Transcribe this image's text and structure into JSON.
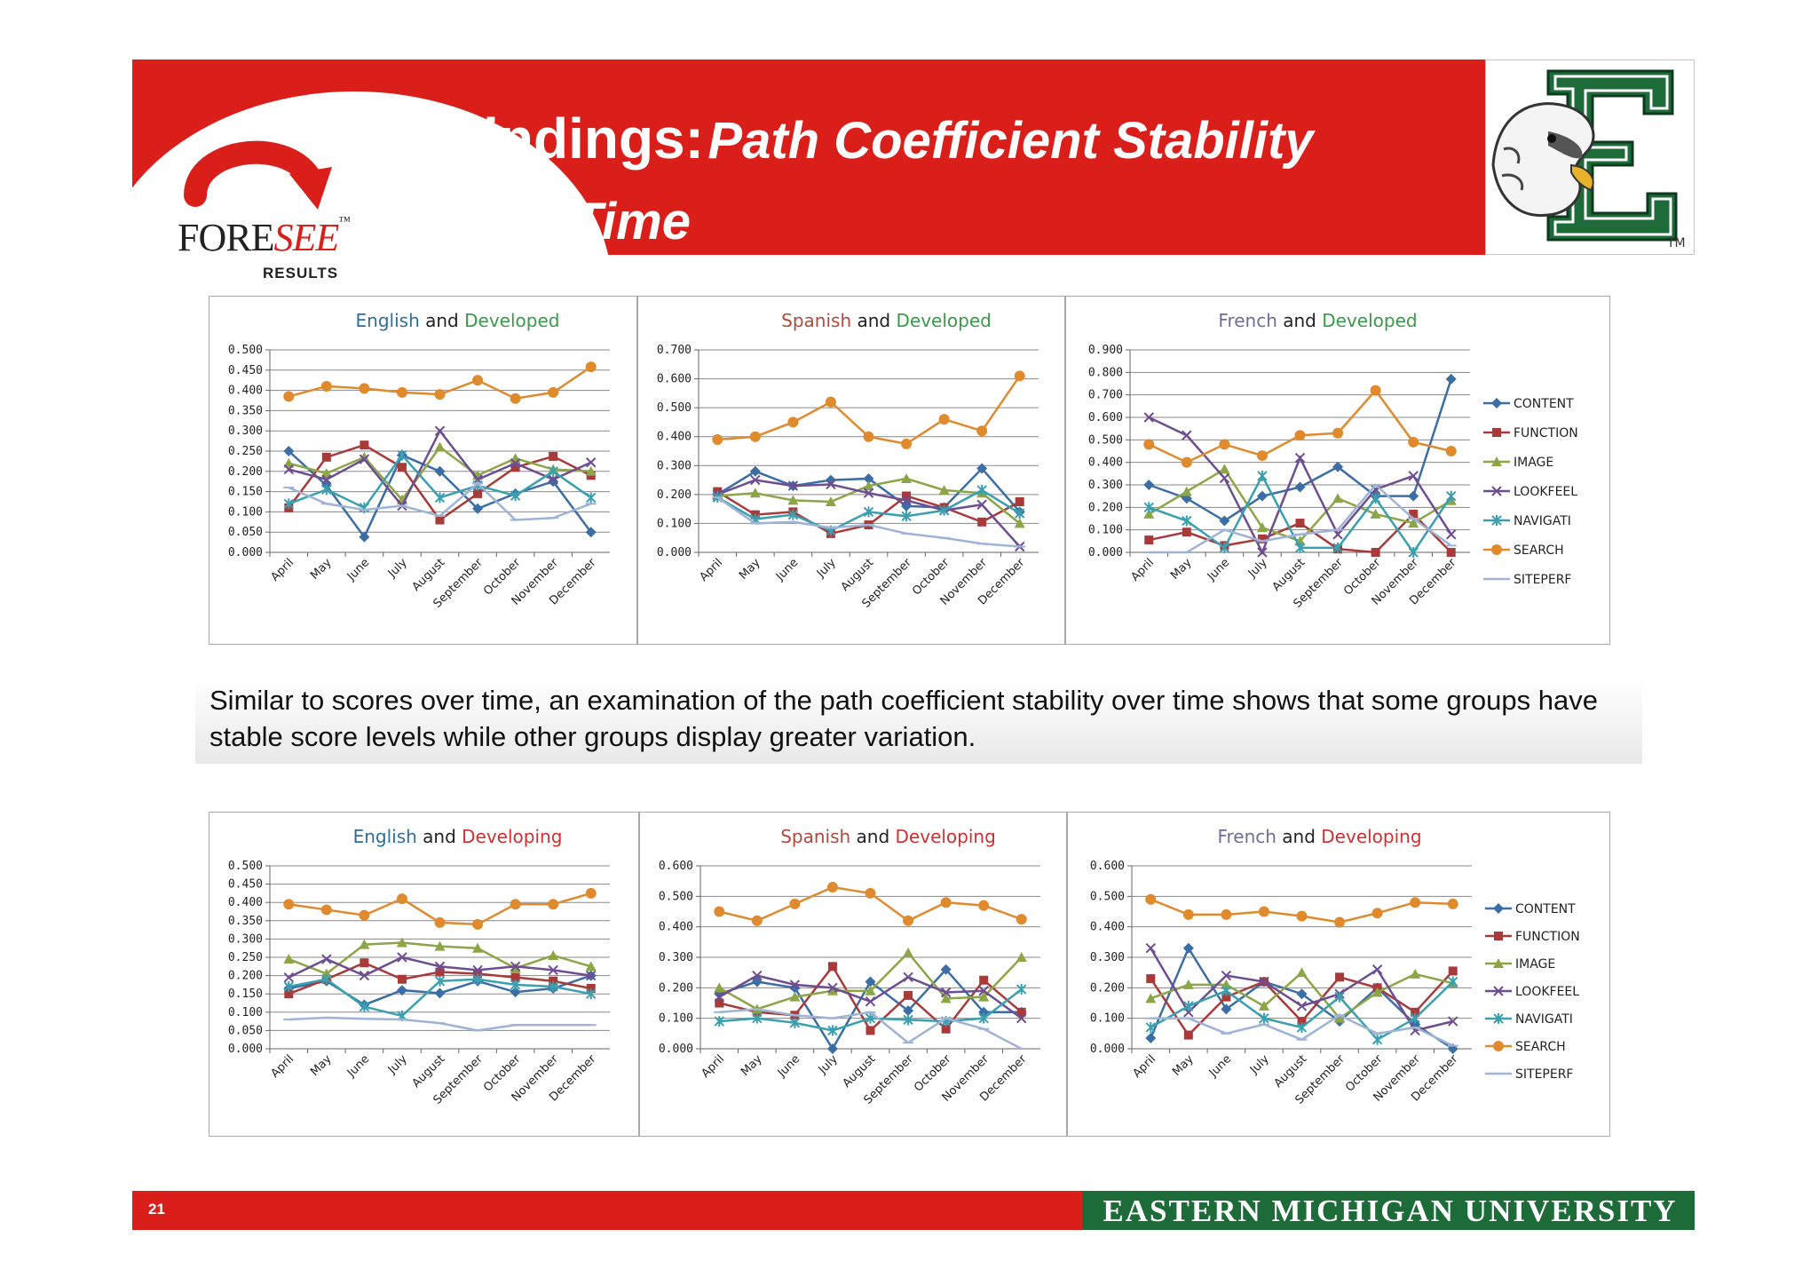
{
  "slide": {
    "title_main": "Findings:",
    "title_italic_1": "Path Coefficient Stability",
    "title_italic_2": "over Time",
    "logo_text_1": "FORE",
    "logo_text_2": "SEE",
    "logo_tm": "™",
    "logo_sub": "RESULTS",
    "emu_tm": "TM",
    "summary": "Similar to scores over time, an examination of the path coefficient stability over time  shows that some groups have stable score levels while other groups display greater variation.",
    "page_number": "21",
    "footer_university": "EASTERN MICHIGAN UNIVERSITY"
  },
  "legend_labels": [
    "CONTENT",
    "FUNCTION",
    "IMAGE",
    "LOOKFEEL",
    "NAVIGATI",
    "SEARCH",
    "SITEPERF"
  ],
  "series_colors": [
    "#3b6ea5",
    "#a83a3a",
    "#8ca546",
    "#6e4d91",
    "#3aa0b0",
    "#e08a2e",
    "#9fb3d6"
  ],
  "colors": {
    "banner_red": "#da1f1b",
    "emu_green": "#1e6b3a",
    "english": "#2e6f9e",
    "spanish": "#b04a3a",
    "french": "#6e6e9a",
    "developed": "#3a9a4a",
    "developing": "#d03030"
  },
  "chart_data": [
    {
      "type": "line",
      "title_lang": "English",
      "title_and": "and",
      "title_group": "Developed",
      "categories": [
        "April",
        "May",
        "June",
        "July",
        "August",
        "September",
        "October",
        "November",
        "December"
      ],
      "ylim": [
        0,
        0.5
      ],
      "yticks": [
        "0.000",
        "0.050",
        "0.100",
        "0.150",
        "0.200",
        "0.250",
        "0.300",
        "0.350",
        "0.400",
        "0.450",
        "0.500"
      ],
      "series": [
        {
          "name": "CONTENT",
          "values": [
            0.25,
            0.165,
            0.038,
            0.24,
            0.2,
            0.108,
            0.145,
            0.175,
            0.05
          ]
        },
        {
          "name": "FUNCTION",
          "values": [
            0.11,
            0.235,
            0.265,
            0.21,
            0.08,
            0.145,
            0.21,
            0.237,
            0.19
          ]
        },
        {
          "name": "IMAGE",
          "values": [
            0.22,
            0.195,
            0.235,
            0.13,
            0.26,
            0.19,
            0.232,
            0.205,
            0.2
          ]
        },
        {
          "name": "LOOKFEEL",
          "values": [
            0.205,
            0.18,
            0.23,
            0.115,
            0.3,
            0.18,
            0.22,
            0.18,
            0.222
          ]
        },
        {
          "name": "NAVIGATI",
          "values": [
            0.12,
            0.155,
            0.11,
            0.24,
            0.135,
            0.165,
            0.14,
            0.2,
            0.135
          ]
        },
        {
          "name": "SEARCH",
          "values": [
            0.385,
            0.41,
            0.405,
            0.395,
            0.39,
            0.425,
            0.38,
            0.395,
            0.458
          ]
        },
        {
          "name": "SITEPERF",
          "values": [
            0.16,
            0.12,
            0.105,
            0.115,
            0.09,
            0.17,
            0.08,
            0.085,
            0.12
          ]
        }
      ]
    },
    {
      "type": "line",
      "title_lang": "Spanish",
      "title_and": "and",
      "title_group": "Developed",
      "categories": [
        "April",
        "May",
        "June",
        "July",
        "August",
        "September",
        "October",
        "November",
        "December"
      ],
      "ylim": [
        0,
        0.7
      ],
      "yticks": [
        "0.000",
        "0.100",
        "0.200",
        "0.300",
        "0.400",
        "0.500",
        "0.600",
        "0.700"
      ],
      "series": [
        {
          "name": "CONTENT",
          "values": [
            0.2,
            0.28,
            0.23,
            0.25,
            0.255,
            0.16,
            0.155,
            0.29,
            0.14
          ]
        },
        {
          "name": "FUNCTION",
          "values": [
            0.21,
            0.13,
            0.14,
            0.065,
            0.095,
            0.195,
            0.155,
            0.105,
            0.175
          ]
        },
        {
          "name": "IMAGE",
          "values": [
            0.195,
            0.205,
            0.18,
            0.175,
            0.23,
            0.255,
            0.215,
            0.205,
            0.1
          ]
        },
        {
          "name": "LOOKFEEL",
          "values": [
            0.2,
            0.25,
            0.23,
            0.235,
            0.205,
            0.18,
            0.145,
            0.165,
            0.02
          ]
        },
        {
          "name": "NAVIGATI",
          "values": [
            0.19,
            0.115,
            0.13,
            0.075,
            0.14,
            0.125,
            0.145,
            0.215,
            0.135
          ]
        },
        {
          "name": "SEARCH",
          "values": [
            0.39,
            0.4,
            0.45,
            0.52,
            0.4,
            0.375,
            0.46,
            0.42,
            0.61
          ]
        },
        {
          "name": "SITEPERF",
          "values": [
            0.19,
            0.1,
            0.105,
            0.085,
            0.095,
            0.065,
            0.05,
            0.03,
            0.02
          ]
        }
      ]
    },
    {
      "type": "line",
      "title_lang": "French",
      "title_and": "and",
      "title_group": "Developed",
      "categories": [
        "April",
        "May",
        "June",
        "July",
        "August",
        "September",
        "October",
        "November",
        "December"
      ],
      "ylim": [
        0,
        0.9
      ],
      "yticks": [
        "0.000",
        "0.100",
        "0.200",
        "0.300",
        "0.400",
        "0.500",
        "0.600",
        "0.700",
        "0.800",
        "0.900"
      ],
      "series": [
        {
          "name": "CONTENT",
          "values": [
            0.3,
            0.24,
            0.14,
            0.25,
            0.29,
            0.38,
            0.25,
            0.25,
            0.77
          ]
        },
        {
          "name": "FUNCTION",
          "values": [
            0.055,
            0.09,
            0.03,
            0.06,
            0.13,
            0.015,
            0.0,
            0.17,
            0.0
          ]
        },
        {
          "name": "IMAGE",
          "values": [
            0.17,
            0.27,
            0.37,
            0.11,
            0.05,
            0.24,
            0.17,
            0.13,
            0.23
          ]
        },
        {
          "name": "LOOKFEEL",
          "values": [
            0.6,
            0.52,
            0.33,
            0.0,
            0.42,
            0.08,
            0.28,
            0.34,
            0.08
          ]
        },
        {
          "name": "NAVIGATI",
          "values": [
            0.2,
            0.14,
            0.02,
            0.34,
            0.02,
            0.02,
            0.24,
            0.0,
            0.25
          ]
        },
        {
          "name": "SEARCH",
          "values": [
            0.48,
            0.4,
            0.48,
            0.43,
            0.52,
            0.53,
            0.72,
            0.49,
            0.45
          ]
        },
        {
          "name": "SITEPERF",
          "values": [
            0.0,
            0.0,
            0.1,
            0.05,
            0.08,
            0.1,
            0.3,
            0.15,
            0.03
          ]
        }
      ],
      "legend": "right"
    },
    {
      "type": "line",
      "title_lang": "English",
      "title_and": "and",
      "title_group": "Developing",
      "categories": [
        "April",
        "May",
        "June",
        "July",
        "August",
        "September",
        "October",
        "November",
        "December"
      ],
      "ylim": [
        0,
        0.5
      ],
      "yticks": [
        "0.000",
        "0.050",
        "0.100",
        "0.150",
        "0.200",
        "0.250",
        "0.300",
        "0.350",
        "0.400",
        "0.450",
        "0.500"
      ],
      "series": [
        {
          "name": "CONTENT",
          "values": [
            0.165,
            0.185,
            0.12,
            0.16,
            0.152,
            0.185,
            0.155,
            0.165,
            0.2
          ]
        },
        {
          "name": "FUNCTION",
          "values": [
            0.15,
            0.19,
            0.235,
            0.19,
            0.21,
            0.205,
            0.195,
            0.185,
            0.165
          ]
        },
        {
          "name": "IMAGE",
          "values": [
            0.245,
            0.205,
            0.285,
            0.29,
            0.28,
            0.275,
            0.22,
            0.255,
            0.225
          ]
        },
        {
          "name": "LOOKFEEL",
          "values": [
            0.195,
            0.245,
            0.2,
            0.25,
            0.225,
            0.215,
            0.225,
            0.215,
            0.2
          ]
        },
        {
          "name": "NAVIGATI",
          "values": [
            0.17,
            0.19,
            0.115,
            0.09,
            0.185,
            0.19,
            0.175,
            0.17,
            0.15
          ]
        },
        {
          "name": "SEARCH",
          "values": [
            0.395,
            0.38,
            0.365,
            0.41,
            0.345,
            0.34,
            0.395,
            0.395,
            0.425
          ]
        },
        {
          "name": "SITEPERF",
          "values": [
            0.08,
            0.085,
            0.082,
            0.08,
            0.07,
            0.05,
            0.065,
            0.065,
            0.065
          ]
        }
      ]
    },
    {
      "type": "line",
      "title_lang": "Spanish",
      "title_and": "and",
      "title_group": "Developing",
      "categories": [
        "April",
        "May",
        "June",
        "July",
        "August",
        "September",
        "October",
        "November",
        "December"
      ],
      "ylim": [
        0,
        0.6
      ],
      "yticks": [
        "0.000",
        "0.100",
        "0.200",
        "0.300",
        "0.400",
        "0.500",
        "0.600"
      ],
      "series": [
        {
          "name": "CONTENT",
          "values": [
            0.18,
            0.22,
            0.2,
            0.0,
            0.22,
            0.125,
            0.26,
            0.12,
            0.12
          ]
        },
        {
          "name": "FUNCTION",
          "values": [
            0.15,
            0.12,
            0.11,
            0.27,
            0.06,
            0.175,
            0.065,
            0.225,
            0.12
          ]
        },
        {
          "name": "IMAGE",
          "values": [
            0.2,
            0.13,
            0.17,
            0.19,
            0.19,
            0.315,
            0.165,
            0.17,
            0.3
          ]
        },
        {
          "name": "LOOKFEEL",
          "values": [
            0.17,
            0.24,
            0.21,
            0.2,
            0.155,
            0.235,
            0.185,
            0.19,
            0.1
          ]
        },
        {
          "name": "NAVIGATI",
          "values": [
            0.09,
            0.1,
            0.085,
            0.06,
            0.1,
            0.095,
            0.09,
            0.1,
            0.195
          ]
        },
        {
          "name": "SEARCH",
          "values": [
            0.45,
            0.42,
            0.475,
            0.53,
            0.51,
            0.42,
            0.48,
            0.47,
            0.425
          ]
        },
        {
          "name": "SITEPERF",
          "values": [
            0.12,
            0.13,
            0.11,
            0.1,
            0.12,
            0.02,
            0.1,
            0.065,
            0.0
          ]
        }
      ]
    },
    {
      "type": "line",
      "title_lang": "French",
      "title_and": "and",
      "title_group": "Developing",
      "categories": [
        "April",
        "May",
        "June",
        "July",
        "August",
        "September",
        "October",
        "November",
        "December"
      ],
      "ylim": [
        0,
        0.6
      ],
      "yticks": [
        "0.000",
        "0.100",
        "0.200",
        "0.300",
        "0.400",
        "0.500",
        "0.600"
      ],
      "series": [
        {
          "name": "CONTENT",
          "values": [
            0.035,
            0.33,
            0.13,
            0.22,
            0.18,
            0.09,
            0.2,
            0.08,
            0.0
          ]
        },
        {
          "name": "FUNCTION",
          "values": [
            0.23,
            0.045,
            0.17,
            0.22,
            0.09,
            0.235,
            0.2,
            0.12,
            0.255
          ]
        },
        {
          "name": "IMAGE",
          "values": [
            0.165,
            0.21,
            0.21,
            0.14,
            0.25,
            0.1,
            0.185,
            0.245,
            0.215
          ]
        },
        {
          "name": "LOOKFEEL",
          "values": [
            0.33,
            0.12,
            0.24,
            0.22,
            0.14,
            0.18,
            0.26,
            0.06,
            0.09
          ]
        },
        {
          "name": "NAVIGATI",
          "values": [
            0.07,
            0.14,
            0.19,
            0.1,
            0.07,
            0.17,
            0.03,
            0.1,
            0.22
          ]
        },
        {
          "name": "SEARCH",
          "values": [
            0.49,
            0.44,
            0.44,
            0.45,
            0.435,
            0.415,
            0.445,
            0.48,
            0.475
          ]
        },
        {
          "name": "SITEPERF",
          "values": [
            0.1,
            0.1,
            0.05,
            0.08,
            0.03,
            0.11,
            0.05,
            0.07,
            0.01
          ]
        }
      ],
      "legend": "right"
    }
  ]
}
